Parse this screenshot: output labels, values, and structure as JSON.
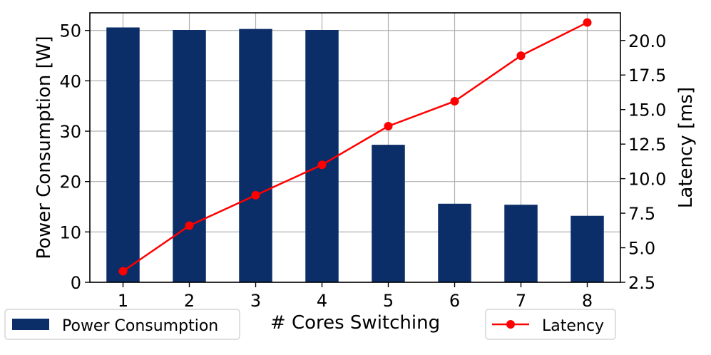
{
  "chart_data": {
    "type": "bar",
    "categories": [
      "1",
      "2",
      "3",
      "4",
      "5",
      "6",
      "7",
      "8"
    ],
    "series": [
      {
        "name": "Power Consumption",
        "type": "bar",
        "axis": "left",
        "color": "#0b2d68",
        "values": [
          50.6,
          50.1,
          50.3,
          50.1,
          27.3,
          15.6,
          15.4,
          13.2
        ]
      },
      {
        "name": "Latency",
        "type": "line",
        "axis": "right",
        "color": "#ff0000",
        "marker": "circle",
        "values": [
          3.3,
          6.6,
          8.8,
          11.0,
          13.8,
          15.6,
          18.9,
          21.3
        ]
      }
    ],
    "xlabel": "# Cores Switching",
    "ylabel": "Power Consumption [W]",
    "y2label": "Latency [ms]",
    "ylim": [
      0,
      53.5
    ],
    "y2lim": [
      2.5,
      22.0
    ],
    "yticks": [
      "0",
      "10",
      "20",
      "30",
      "40",
      "50"
    ],
    "y2ticks": [
      "2.5",
      "5.0",
      "7.5",
      "10.0",
      "12.5",
      "15.0",
      "17.5",
      "20.0"
    ],
    "grid": true,
    "legend": [
      {
        "label": "Power Consumption",
        "placement": "bottom-left"
      },
      {
        "label": "Latency",
        "placement": "bottom-right"
      }
    ]
  }
}
